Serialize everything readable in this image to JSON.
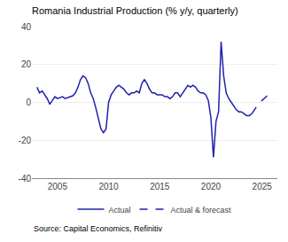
{
  "chart_data": {
    "type": "line",
    "title": "Romania Industrial Production (% y/y, quarterly)",
    "annotations": [
      "Source: Capital Economics, Refinitiv"
    ],
    "xlim": [
      2002.5,
      2026.5
    ],
    "xticks": [
      2005,
      2010,
      2015,
      2020,
      2025
    ],
    "ylim": [
      -40,
      40
    ],
    "yticks": [
      -40,
      -20,
      0,
      20,
      40
    ],
    "grid": "y",
    "legend": "bottom",
    "series": [
      {
        "name": "Actual",
        "color": "#2222aa",
        "line_style": "solid",
        "x": [
          2003.0,
          2003.25,
          2003.5,
          2003.75,
          2004.0,
          2004.25,
          2004.5,
          2004.75,
          2005.0,
          2005.25,
          2005.5,
          2005.75,
          2006.0,
          2006.25,
          2006.5,
          2006.75,
          2007.0,
          2007.25,
          2007.5,
          2007.75,
          2008.0,
          2008.25,
          2008.5,
          2008.75,
          2009.0,
          2009.25,
          2009.5,
          2009.75,
          2010.0,
          2010.25,
          2010.5,
          2010.75,
          2011.0,
          2011.25,
          2011.5,
          2011.75,
          2012.0,
          2012.25,
          2012.5,
          2012.75,
          2013.0,
          2013.25,
          2013.5,
          2013.75,
          2014.0,
          2014.25,
          2014.5,
          2014.75,
          2015.0,
          2015.25,
          2015.5,
          2015.75,
          2016.0,
          2016.25,
          2016.5,
          2016.75,
          2017.0,
          2017.25,
          2017.5,
          2017.75,
          2018.0,
          2018.25,
          2018.5,
          2018.75,
          2019.0,
          2019.25,
          2019.5,
          2019.75,
          2020.0,
          2020.25,
          2020.5,
          2020.75,
          2021.0,
          2021.25,
          2021.5,
          2021.75,
          2022.0,
          2022.25,
          2022.5,
          2022.75,
          2023.0,
          2023.25,
          2023.5,
          2023.75,
          2024.0
        ],
        "values": [
          8.0,
          5.0,
          6.0,
          4.0,
          2.0,
          -1.0,
          1.0,
          3.0,
          2.0,
          2.5,
          3.0,
          2.0,
          2.5,
          3.0,
          3.5,
          5.0,
          8.0,
          12.0,
          14.0,
          13.0,
          10.0,
          5.0,
          2.0,
          -3.0,
          -8.0,
          -14.0,
          -16.0,
          -14.0,
          0.0,
          4.0,
          6.0,
          8.0,
          9.0,
          8.0,
          7.0,
          5.0,
          4.0,
          5.0,
          5.0,
          6.0,
          5.0,
          10.0,
          12.0,
          10.0,
          7.0,
          5.0,
          5.0,
          4.0,
          4.0,
          4.0,
          3.0,
          3.0,
          2.0,
          3.0,
          5.0,
          5.0,
          3.0,
          5.0,
          7.0,
          9.0,
          8.0,
          9.0,
          8.0,
          6.0,
          5.0,
          5.0,
          4.0,
          1.0,
          -8.0,
          -29.0,
          -10.0,
          -5.0,
          32.0,
          14.0,
          5.0,
          2.0,
          0.0,
          -2.0,
          -4.0,
          -5.0,
          -5.0,
          -6.0,
          -7.0,
          -7.0,
          -6.0
        ]
      },
      {
        "name": "Actual & forecast",
        "color": "#2222aa",
        "line_style": "dashed",
        "x": [
          2024.0,
          2024.25,
          2024.5,
          2024.75,
          2025.0,
          2025.25,
          2025.5,
          2025.75,
          2026.0
        ],
        "values": [
          -6.0,
          -4.0,
          -2.0,
          0.0,
          1.0,
          2.5,
          3.5,
          4.5,
          5.0
        ]
      }
    ]
  }
}
